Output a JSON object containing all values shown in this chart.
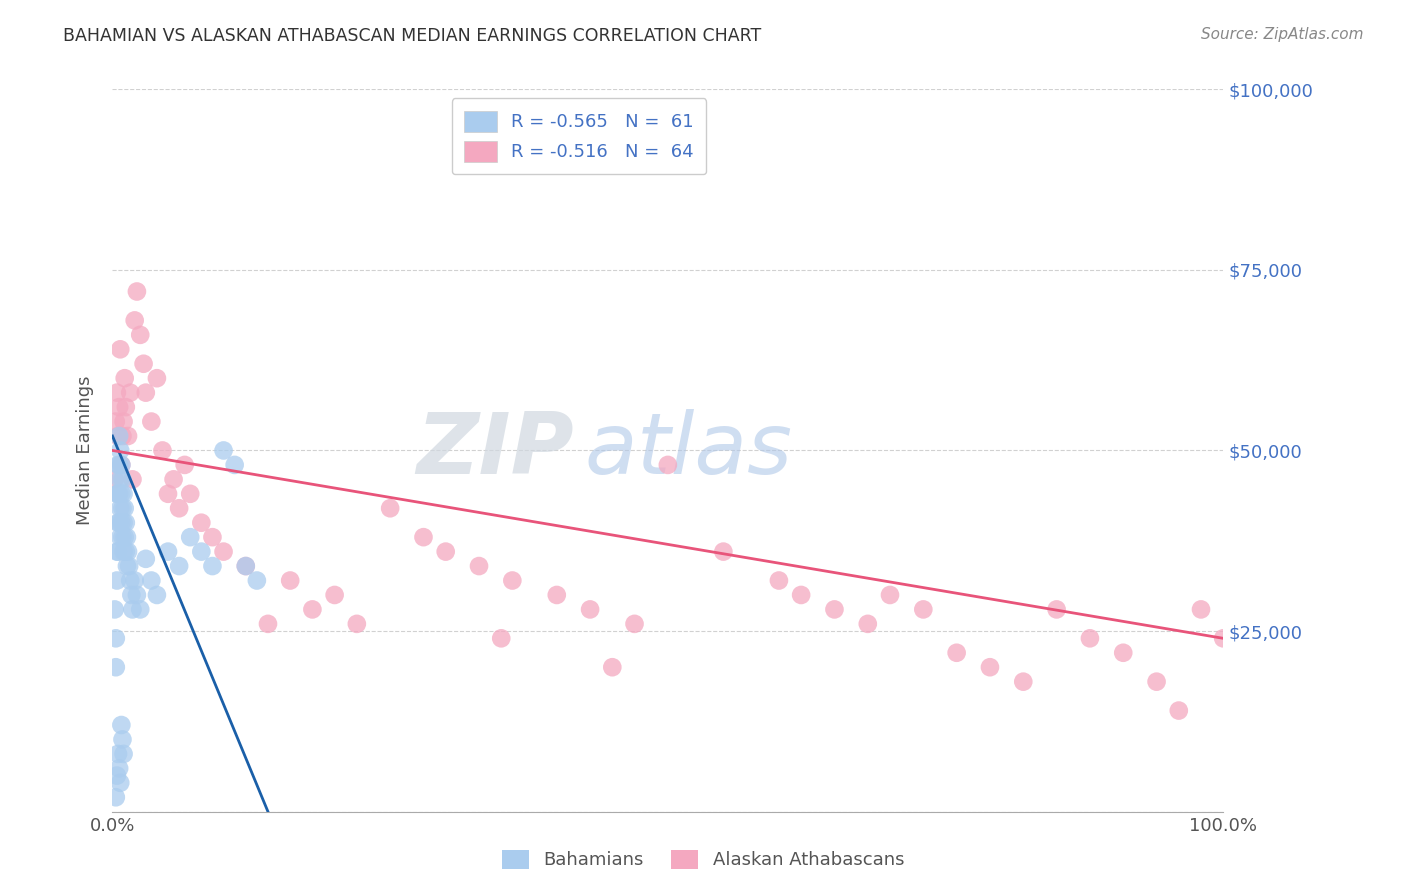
{
  "title": "BAHAMIAN VS ALASKAN ATHABASCAN MEDIAN EARNINGS CORRELATION CHART",
  "source": "Source: ZipAtlas.com",
  "ylabel": "Median Earnings",
  "xlim": [
    0,
    1.0
  ],
  "ylim": [
    0,
    100000
  ],
  "yticks": [
    0,
    25000,
    50000,
    75000,
    100000
  ],
  "ytick_labels": [
    "",
    "$25,000",
    "$50,000",
    "$75,000",
    "$100,000"
  ],
  "legend_r1": "R = -0.565",
  "legend_n1": "N =  61",
  "legend_r2": "R = -0.516",
  "legend_n2": "N =  64",
  "blue_color": "#aaccee",
  "pink_color": "#f4a8c0",
  "blue_line_color": "#1a5fa8",
  "pink_line_color": "#e8547a",
  "background_color": "#ffffff",
  "title_color": "#333333",
  "right_label_color": "#4472c4",
  "blue_scatter_x": [
    0.002,
    0.003,
    0.003,
    0.004,
    0.004,
    0.004,
    0.005,
    0.005,
    0.005,
    0.005,
    0.006,
    0.006,
    0.006,
    0.006,
    0.007,
    0.007,
    0.007,
    0.007,
    0.008,
    0.008,
    0.008,
    0.009,
    0.009,
    0.009,
    0.01,
    0.01,
    0.01,
    0.011,
    0.011,
    0.012,
    0.012,
    0.013,
    0.013,
    0.014,
    0.015,
    0.016,
    0.017,
    0.018,
    0.02,
    0.022,
    0.025,
    0.03,
    0.035,
    0.04,
    0.05,
    0.06,
    0.07,
    0.08,
    0.09,
    0.1,
    0.11,
    0.12,
    0.13,
    0.005,
    0.006,
    0.007,
    0.008,
    0.009,
    0.01,
    0.003,
    0.004
  ],
  "blue_scatter_y": [
    28000,
    24000,
    20000,
    36000,
    32000,
    44000,
    48000,
    44000,
    40000,
    36000,
    52000,
    48000,
    44000,
    40000,
    50000,
    46000,
    42000,
    38000,
    48000,
    44000,
    40000,
    46000,
    42000,
    38000,
    44000,
    40000,
    36000,
    42000,
    38000,
    40000,
    36000,
    38000,
    34000,
    36000,
    34000,
    32000,
    30000,
    28000,
    32000,
    30000,
    28000,
    35000,
    32000,
    30000,
    36000,
    34000,
    38000,
    36000,
    34000,
    50000,
    48000,
    34000,
    32000,
    8000,
    6000,
    4000,
    12000,
    10000,
    8000,
    2000,
    5000
  ],
  "pink_scatter_x": [
    0.002,
    0.003,
    0.004,
    0.005,
    0.006,
    0.007,
    0.008,
    0.009,
    0.01,
    0.011,
    0.012,
    0.014,
    0.016,
    0.018,
    0.02,
    0.022,
    0.025,
    0.028,
    0.03,
    0.035,
    0.04,
    0.045,
    0.05,
    0.055,
    0.06,
    0.065,
    0.07,
    0.08,
    0.09,
    0.1,
    0.12,
    0.14,
    0.16,
    0.18,
    0.2,
    0.22,
    0.25,
    0.28,
    0.3,
    0.33,
    0.36,
    0.4,
    0.43,
    0.47,
    0.5,
    0.55,
    0.6,
    0.62,
    0.65,
    0.68,
    0.7,
    0.73,
    0.76,
    0.79,
    0.82,
    0.85,
    0.88,
    0.91,
    0.94,
    0.96,
    0.98,
    1.0,
    0.35,
    0.45
  ],
  "pink_scatter_y": [
    46000,
    54000,
    58000,
    52000,
    56000,
    64000,
    48000,
    52000,
    54000,
    60000,
    56000,
    52000,
    58000,
    46000,
    68000,
    72000,
    66000,
    62000,
    58000,
    54000,
    60000,
    50000,
    44000,
    46000,
    42000,
    48000,
    44000,
    40000,
    38000,
    36000,
    34000,
    26000,
    32000,
    28000,
    30000,
    26000,
    42000,
    38000,
    36000,
    34000,
    32000,
    30000,
    28000,
    26000,
    48000,
    36000,
    32000,
    30000,
    28000,
    26000,
    30000,
    28000,
    22000,
    20000,
    18000,
    28000,
    24000,
    22000,
    18000,
    14000,
    28000,
    24000,
    24000,
    20000
  ],
  "blue_line_x": [
    0.0,
    0.14
  ],
  "blue_line_y": [
    52000,
    0
  ],
  "pink_line_x": [
    0.0,
    1.0
  ],
  "pink_line_y": [
    50000,
    24000
  ]
}
